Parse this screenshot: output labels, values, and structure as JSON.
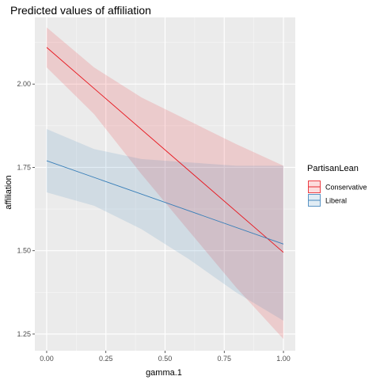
{
  "chart_data": {
    "type": "line",
    "title": "Predicted values of affiliation",
    "xlabel": "gamma.1",
    "ylabel": "affiliation",
    "xlim": [
      -0.05,
      1.05
    ],
    "ylim": [
      1.2,
      2.2
    ],
    "x_ticks": [
      0,
      0.25,
      0.5,
      0.75,
      1
    ],
    "x_tick_labels": [
      "0.00",
      "0.25",
      "0.50",
      "0.75",
      "1.00"
    ],
    "y_ticks": [
      1.25,
      1.5,
      1.75,
      2.0
    ],
    "y_tick_labels": [
      "1.25",
      "1.50",
      "1.75",
      "2.00"
    ],
    "grid": true,
    "legend": {
      "title": "PartisanLean",
      "position": "right"
    },
    "series": [
      {
        "name": "Conservative",
        "color": "#e8141c",
        "fill": "#e8141c",
        "x": [
          0,
          1
        ],
        "values": [
          2.11,
          1.495
        ],
        "band_x": [
          0,
          0.2,
          0.4,
          0.6,
          0.8,
          1.0
        ],
        "band_upper": [
          2.17,
          2.05,
          1.96,
          1.89,
          1.82,
          1.755
        ],
        "band_lower": [
          2.05,
          1.91,
          1.73,
          1.56,
          1.39,
          1.235
        ]
      },
      {
        "name": "Liberal",
        "color": "#377eb8",
        "fill": "#377eb8",
        "x": [
          0,
          1
        ],
        "values": [
          1.77,
          1.52
        ],
        "band_x": [
          0,
          0.2,
          0.4,
          0.6,
          0.8,
          1.0
        ],
        "band_upper": [
          1.865,
          1.805,
          1.775,
          1.765,
          1.755,
          1.755
        ],
        "band_lower": [
          1.675,
          1.635,
          1.565,
          1.475,
          1.375,
          1.29
        ]
      }
    ]
  }
}
